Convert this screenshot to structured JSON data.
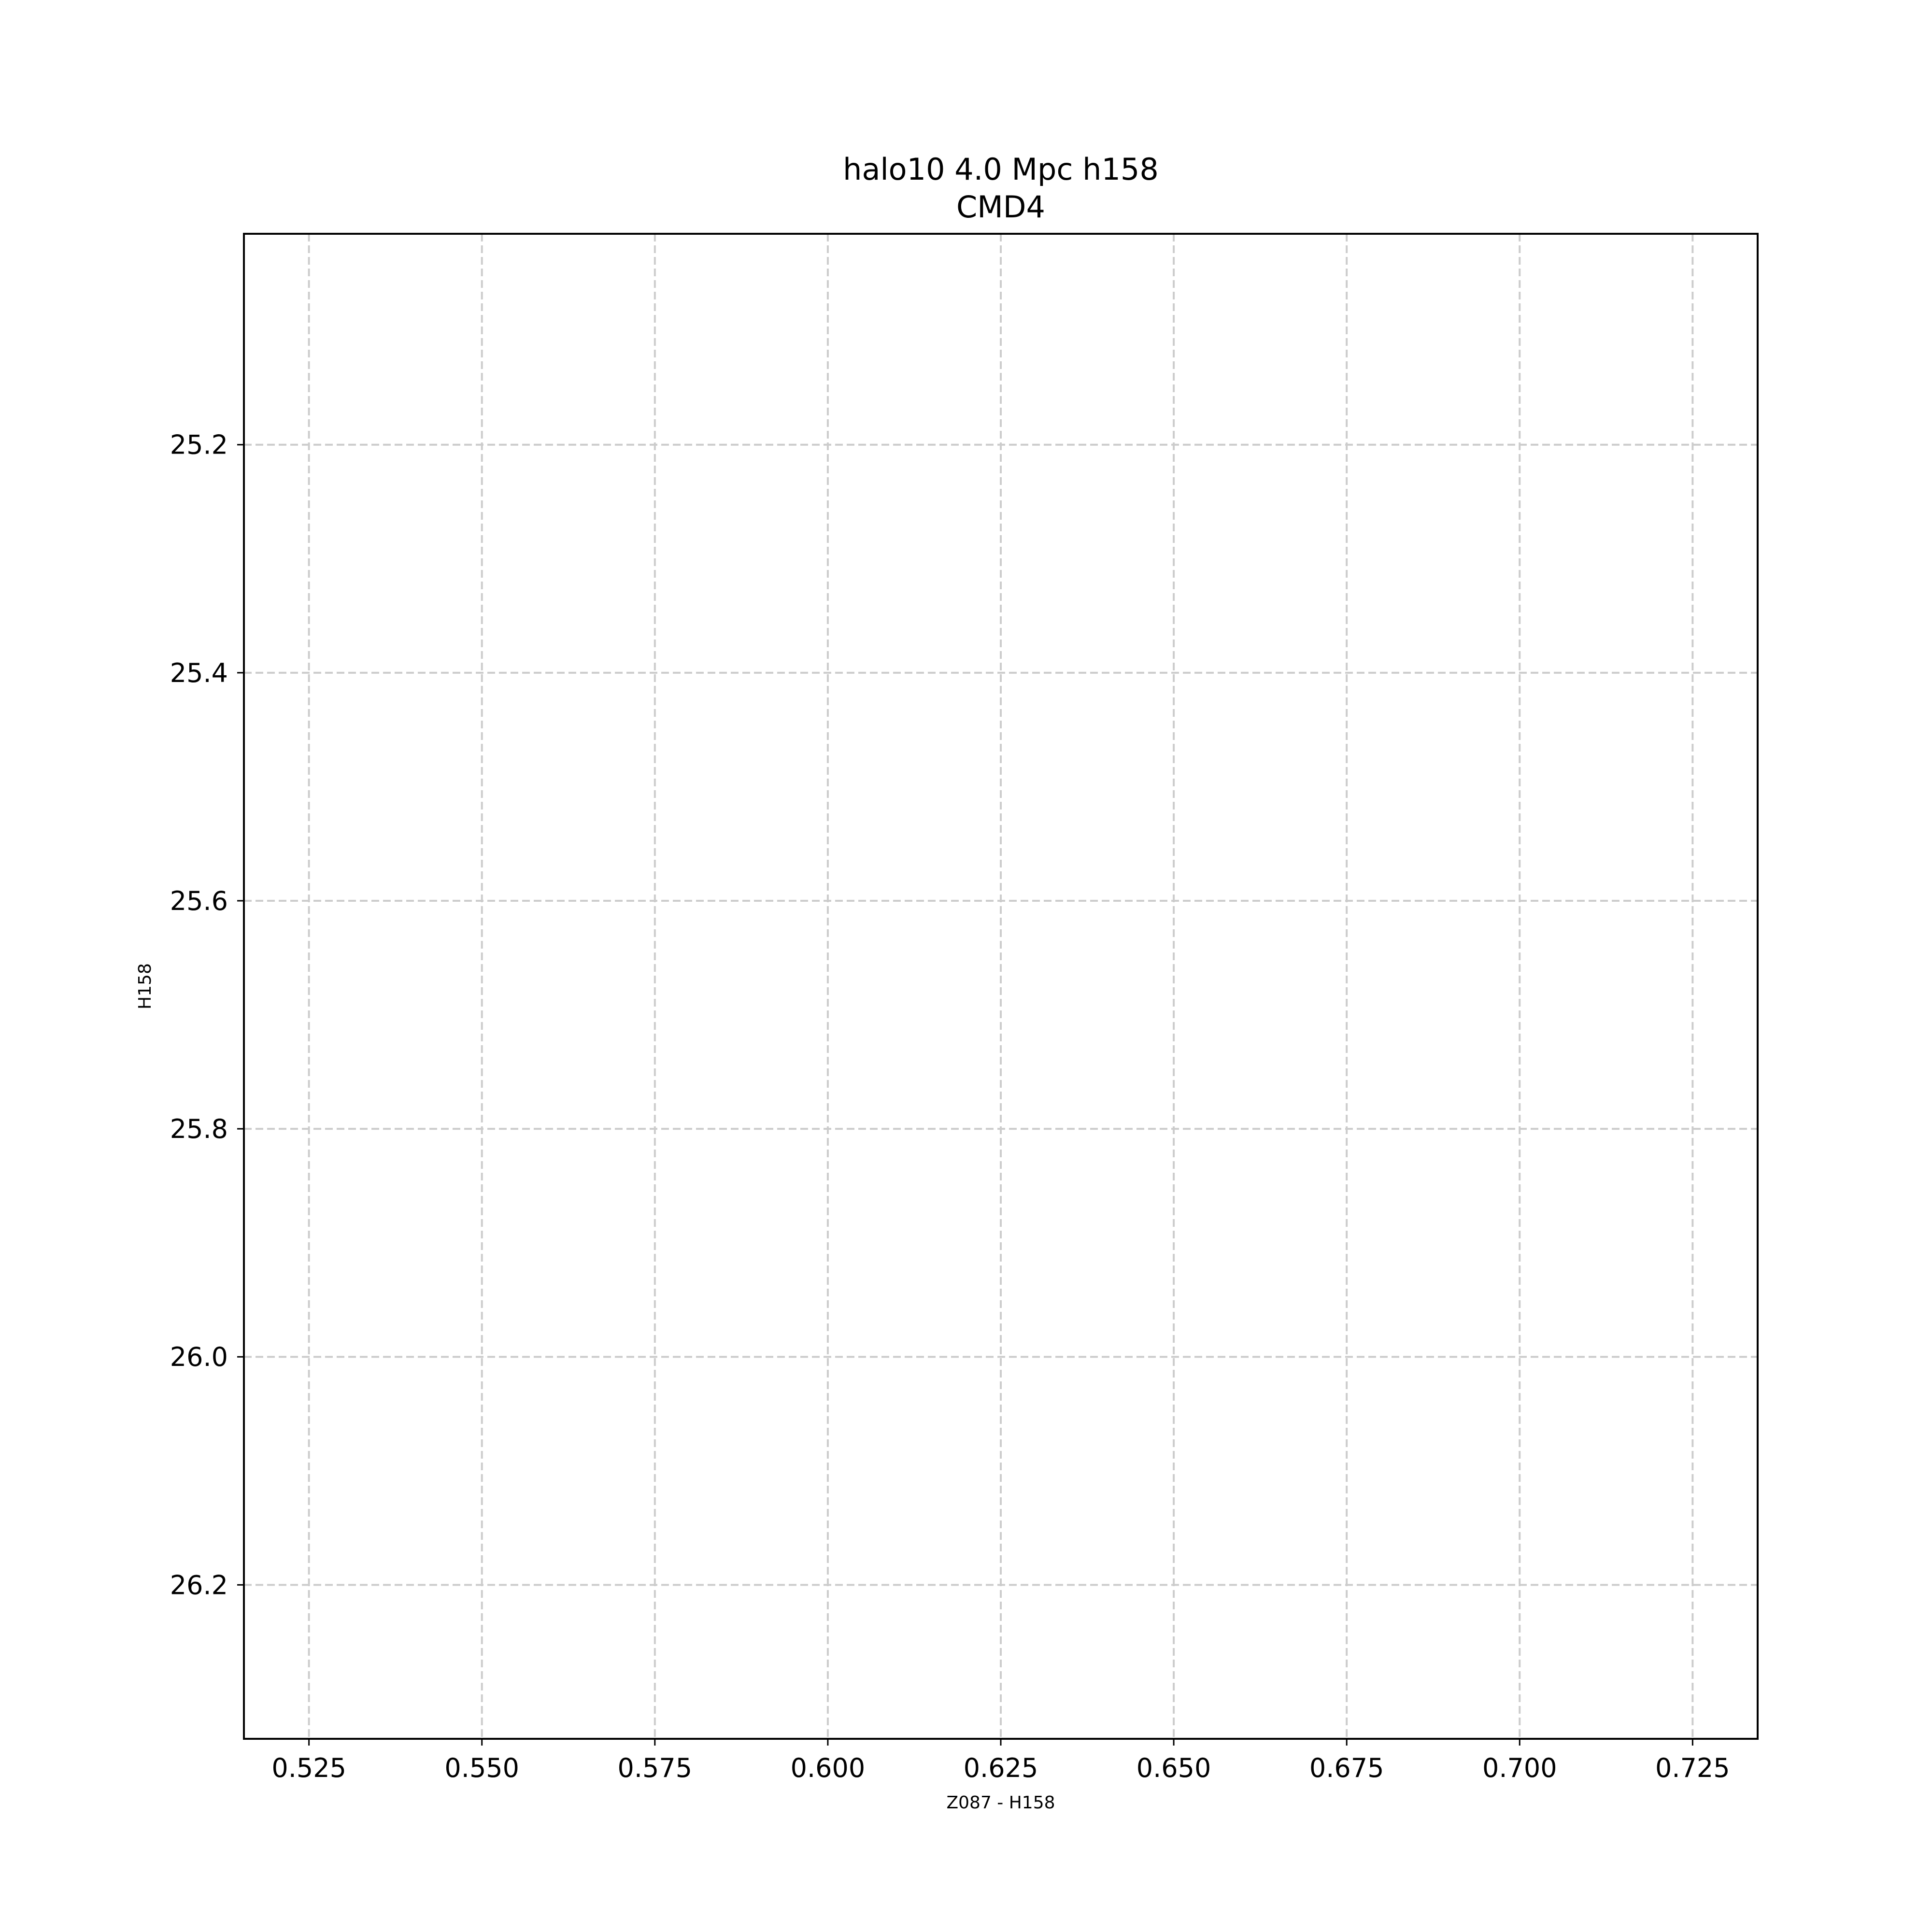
{
  "chart_data": {
    "type": "scatter",
    "title": "halo10 4.0 Mpc h158",
    "subtitle": "CMD4",
    "xlabel": "Z087 - H158",
    "ylabel": "H158",
    "xlim": [
      0.5156,
      0.7344
    ],
    "ylim": [
      26.335,
      25.015
    ],
    "y_inverted": true,
    "x_ticks": [
      0.525,
      0.55,
      0.575,
      0.6,
      0.625,
      0.65,
      0.675,
      0.7,
      0.725
    ],
    "x_tick_labels": [
      "0.525",
      "0.550",
      "0.575",
      "0.600",
      "0.625",
      "0.650",
      "0.675",
      "0.700",
      "0.725"
    ],
    "y_ticks": [
      25.2,
      25.4,
      25.6,
      25.8,
      26.0,
      26.2
    ],
    "y_tick_labels": [
      "25.2",
      "25.4",
      "25.6",
      "25.8",
      "26.0",
      "26.2"
    ],
    "grid": true,
    "series": [
      {
        "x": [],
        "y": []
      }
    ]
  }
}
